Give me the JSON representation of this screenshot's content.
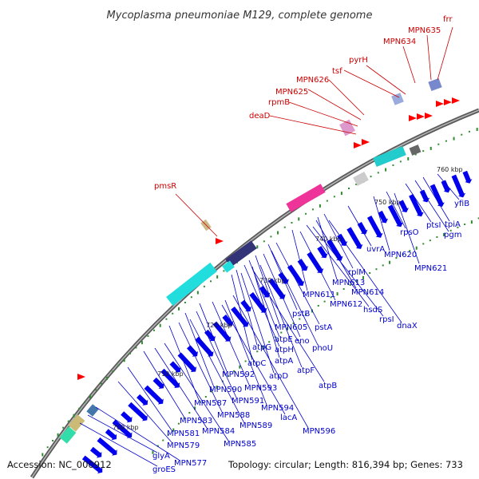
{
  "title": "Mycoplasma pneumoniae M129, complete genome",
  "footer": {
    "accession": "Accession: NC_000912",
    "summary": "Topology: circular; Length: 816,394 bp; Genes: 733"
  },
  "colors": {
    "backbone": "#777777",
    "forward_gene": "#ff0000",
    "reverse_gene": "#0000ee",
    "forward_label": "#cc0000",
    "reverse_label": "#0000cc",
    "gc_dots": "#2e8b2e"
  },
  "kbp_ticks": [
    "700 kbp",
    "710 kbp",
    "720 kbp",
    "730 kbp",
    "740 kbp",
    "750 kbp",
    "760 kbp"
  ],
  "forward_labels": [
    "pmsR",
    "deaD",
    "rpmB",
    "MPN625",
    "MPN626",
    "tsf",
    "pyrH",
    "MPN634",
    "MPN635",
    "frr"
  ],
  "reverse_labels": [
    "yfiB",
    "tpiA",
    "pgm",
    "ptsI",
    "rpsO",
    "MPN621",
    "MPN620",
    "uvrA",
    "rplM",
    "MPN613",
    "MPN614",
    "MPN611",
    "MPN612",
    "hsdS",
    "rpsI",
    "dnaX",
    "pstB",
    "pstA",
    "MPN605",
    "eno",
    "phoU",
    "atpE",
    "atpH",
    "atpG",
    "atpA",
    "atpF",
    "atpC",
    "atpD",
    "atpB",
    "MPN592",
    "MPN593",
    "MPN590",
    "MPN591",
    "MPN594",
    "MPN587",
    "MPN588",
    "MPN589",
    "lacA",
    "MPN596",
    "MPN583",
    "MPN584",
    "MPN585",
    "MPN581",
    "MPN579",
    "MPN577",
    "glyA",
    "groES"
  ]
}
